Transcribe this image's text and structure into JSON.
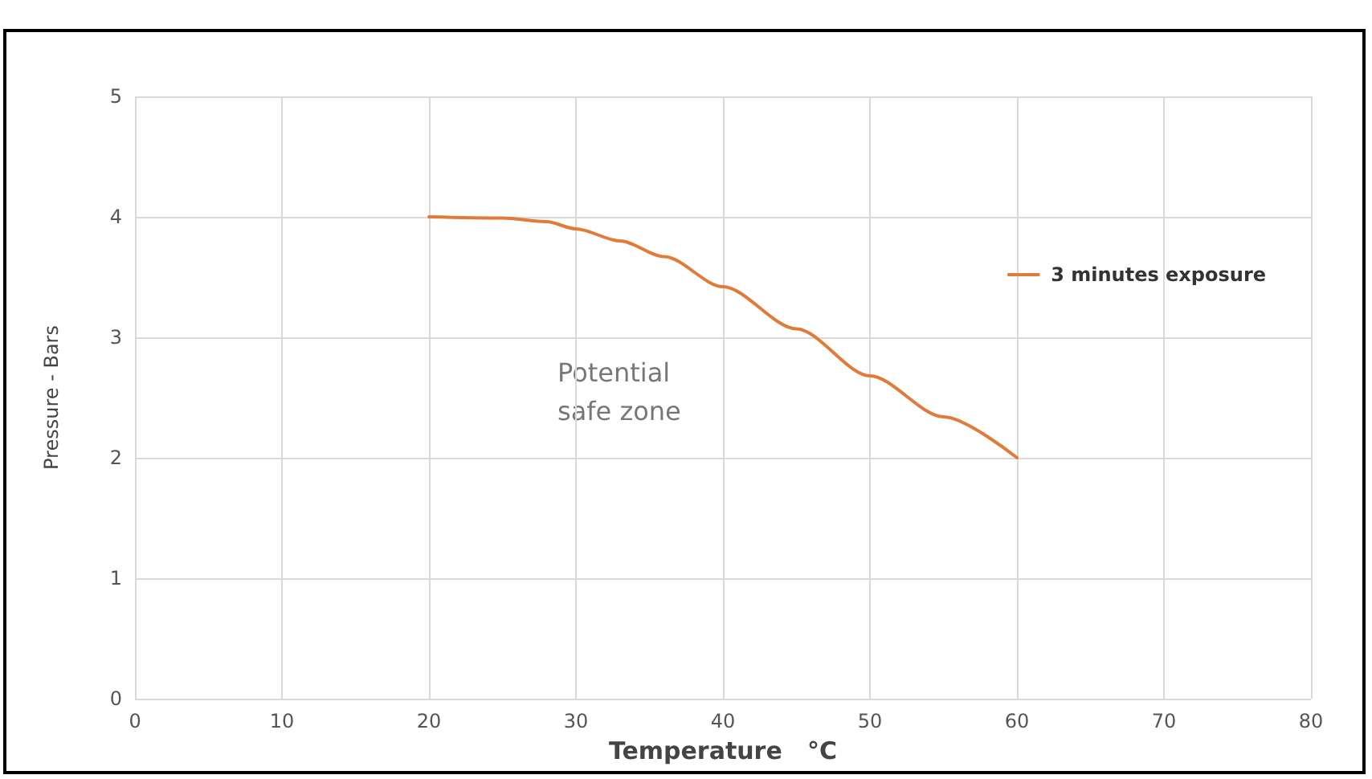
{
  "chart_data": {
    "type": "line",
    "xlabel": "Temperature   °C",
    "ylabel": "Pressure - Bars",
    "series": [
      {
        "name": "3 minutes exposure",
        "color": "#e07b39",
        "x": [
          20,
          25,
          28,
          30,
          33,
          36,
          40,
          45,
          50,
          55,
          60
        ],
        "values": [
          4.0,
          3.99,
          3.96,
          3.9,
          3.8,
          3.67,
          3.42,
          3.07,
          2.68,
          2.34,
          2.0
        ]
      }
    ],
    "xlim": [
      0,
      80
    ],
    "xticks": [
      0,
      10,
      20,
      30,
      40,
      50,
      60,
      70,
      80
    ],
    "ylim": [
      0,
      5
    ],
    "yticks": [
      0,
      1,
      2,
      3,
      4,
      5
    ],
    "grid": true,
    "legend": "top right",
    "marker": "none",
    "line_style": "solid",
    "annotations": [
      "Potential safe zone"
    ]
  }
}
